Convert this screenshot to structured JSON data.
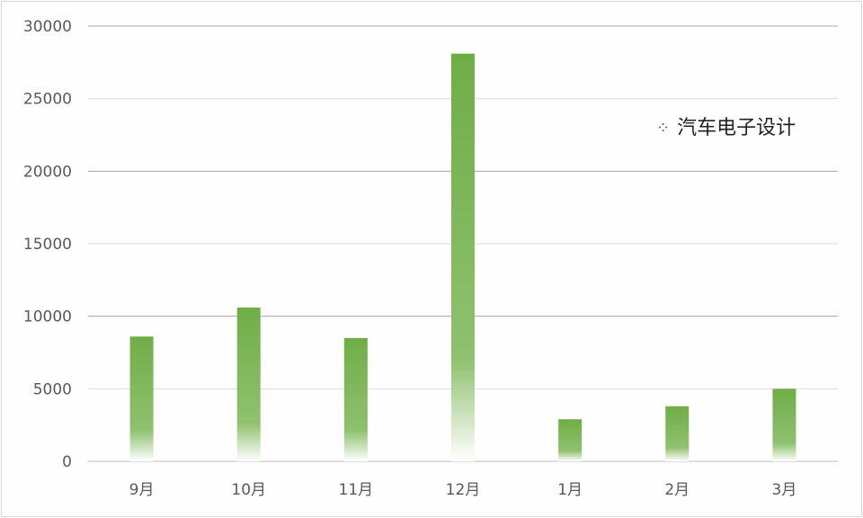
{
  "chart_data": {
    "type": "bar",
    "categories": [
      "9月",
      "10月",
      "11月",
      "12月",
      "1月",
      "2月",
      "3月"
    ],
    "values": [
      8600,
      10600,
      8500,
      28100,
      2900,
      3800,
      5000
    ],
    "title": "",
    "xlabel": "",
    "ylabel": "",
    "ylim": [
      0,
      30000
    ],
    "yticks": [
      "0",
      "5000",
      "10000",
      "15000",
      "20000",
      "25000",
      "30000"
    ],
    "grid": true,
    "bar_color": "#70ad47",
    "legend": "none"
  },
  "watermark": {
    "icon": "wechat-icon",
    "text": "汽车电子设计"
  }
}
